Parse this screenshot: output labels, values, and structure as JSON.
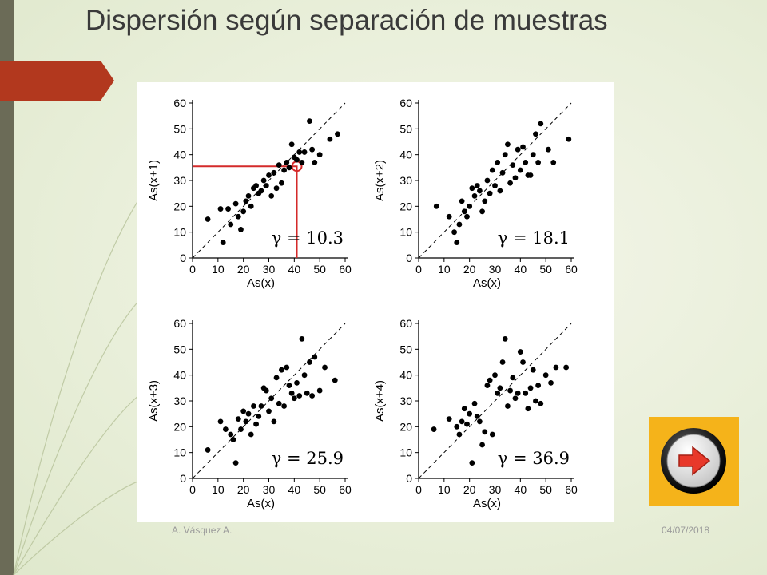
{
  "slide": {
    "title": "Dispersión según separación de muestras",
    "footer_author": "A. Vásquez A.",
    "footer_date": "04/07/2018",
    "colors": {
      "sidebar": "#6b6b57",
      "ribbon": "#b2381e",
      "button_bg": "#f5b31a",
      "arrow": "#e8382a",
      "highlight": "#d42a2a"
    },
    "next_button_icon": "arrow-right-icon"
  },
  "chart_data": [
    {
      "type": "scatter",
      "xlabel": "As(x)",
      "ylabel": "As(x+1)",
      "xlim": [
        0,
        60
      ],
      "ylim": [
        0,
        60
      ],
      "xticks": [
        "0",
        "10",
        "20",
        "30",
        "40",
        "50",
        "60"
      ],
      "yticks": [
        "0",
        "10",
        "20",
        "30",
        "40",
        "50",
        "60"
      ],
      "annotation": "γ = 10.3",
      "reference_line": "y = x (dashed)",
      "highlight": {
        "x": 41,
        "y": 35.5
      },
      "points": [
        [
          6,
          15
        ],
        [
          11,
          19
        ],
        [
          12,
          6
        ],
        [
          14,
          19
        ],
        [
          15,
          13
        ],
        [
          17,
          21
        ],
        [
          18,
          16
        ],
        [
          19,
          11
        ],
        [
          20,
          18
        ],
        [
          21,
          22
        ],
        [
          22,
          24
        ],
        [
          23,
          20
        ],
        [
          24,
          27
        ],
        [
          25,
          28
        ],
        [
          26,
          25
        ],
        [
          27,
          26
        ],
        [
          28,
          30
        ],
        [
          29,
          28
        ],
        [
          30,
          32
        ],
        [
          31,
          24
        ],
        [
          32,
          33
        ],
        [
          33,
          27
        ],
        [
          34,
          36
        ],
        [
          35,
          29
        ],
        [
          36,
          34
        ],
        [
          37,
          37
        ],
        [
          38,
          35
        ],
        [
          39,
          44
        ],
        [
          40,
          39
        ],
        [
          41,
          38
        ],
        [
          42,
          41
        ],
        [
          43,
          37
        ],
        [
          44,
          41
        ],
        [
          46,
          53
        ],
        [
          47,
          42
        ],
        [
          48,
          37
        ],
        [
          50,
          40
        ],
        [
          54,
          46
        ],
        [
          57,
          48
        ]
      ]
    },
    {
      "type": "scatter",
      "xlabel": "As(x)",
      "ylabel": "As(x+2)",
      "xlim": [
        0,
        60
      ],
      "ylim": [
        0,
        60
      ],
      "xticks": [
        "0",
        "10",
        "20",
        "30",
        "40",
        "50",
        "60"
      ],
      "yticks": [
        "0",
        "10",
        "20",
        "30",
        "40",
        "50",
        "60"
      ],
      "annotation": "γ = 18.1",
      "reference_line": "y = x (dashed)",
      "points": [
        [
          7,
          20
        ],
        [
          12,
          16
        ],
        [
          14,
          10
        ],
        [
          15,
          6
        ],
        [
          16,
          13
        ],
        [
          17,
          22
        ],
        [
          18,
          18
        ],
        [
          19,
          16
        ],
        [
          20,
          20
        ],
        [
          21,
          27
        ],
        [
          22,
          24
        ],
        [
          23,
          28
        ],
        [
          24,
          26
        ],
        [
          25,
          18
        ],
        [
          26,
          22
        ],
        [
          27,
          30
        ],
        [
          28,
          25
        ],
        [
          29,
          34
        ],
        [
          30,
          28
        ],
        [
          31,
          37
        ],
        [
          32,
          26
        ],
        [
          33,
          33
        ],
        [
          34,
          40
        ],
        [
          35,
          44
        ],
        [
          36,
          29
        ],
        [
          37,
          36
        ],
        [
          38,
          31
        ],
        [
          39,
          42
        ],
        [
          40,
          34
        ],
        [
          41,
          43
        ],
        [
          42,
          37
        ],
        [
          43,
          32
        ],
        [
          44,
          32
        ],
        [
          45,
          40
        ],
        [
          46,
          48
        ],
        [
          47,
          37
        ],
        [
          48,
          52
        ],
        [
          51,
          42
        ],
        [
          53,
          37
        ],
        [
          59,
          46
        ]
      ]
    },
    {
      "type": "scatter",
      "xlabel": "As(x)",
      "ylabel": "As(x+3)",
      "xlim": [
        0,
        60
      ],
      "ylim": [
        0,
        60
      ],
      "xticks": [
        "0",
        "10",
        "20",
        "30",
        "40",
        "50",
        "60"
      ],
      "yticks": [
        "0",
        "10",
        "20",
        "30",
        "40",
        "50",
        "60"
      ],
      "annotation": "γ = 25.9",
      "reference_line": "y = x (dashed)",
      "points": [
        [
          6,
          11
        ],
        [
          11,
          22
        ],
        [
          13,
          19
        ],
        [
          15,
          17
        ],
        [
          16,
          15
        ],
        [
          17,
          6
        ],
        [
          18,
          23
        ],
        [
          19,
          19
        ],
        [
          20,
          26
        ],
        [
          21,
          22
        ],
        [
          22,
          25
        ],
        [
          23,
          17
        ],
        [
          24,
          28
        ],
        [
          25,
          21
        ],
        [
          26,
          24
        ],
        [
          27,
          28
        ],
        [
          28,
          35
        ],
        [
          29,
          34
        ],
        [
          30,
          26
        ],
        [
          31,
          31
        ],
        [
          32,
          22
        ],
        [
          33,
          39
        ],
        [
          34,
          29
        ],
        [
          35,
          42
        ],
        [
          36,
          28
        ],
        [
          37,
          43
        ],
        [
          38,
          36
        ],
        [
          39,
          33
        ],
        [
          40,
          31
        ],
        [
          41,
          37
        ],
        [
          42,
          32
        ],
        [
          43,
          54
        ],
        [
          44,
          40
        ],
        [
          45,
          33
        ],
        [
          46,
          45
        ],
        [
          47,
          32
        ],
        [
          48,
          47
        ],
        [
          50,
          34
        ],
        [
          52,
          43
        ],
        [
          56,
          38
        ]
      ]
    },
    {
      "type": "scatter",
      "xlabel": "As(x)",
      "ylabel": "As(x+4)",
      "xlim": [
        0,
        60
      ],
      "ylim": [
        0,
        60
      ],
      "xticks": [
        "0",
        "10",
        "20",
        "30",
        "40",
        "50",
        "60"
      ],
      "yticks": [
        "0",
        "10",
        "20",
        "30",
        "40",
        "50",
        "60"
      ],
      "annotation": "γ = 36.9",
      "reference_line": "y = x (dashed)",
      "points": [
        [
          6,
          19
        ],
        [
          12,
          23
        ],
        [
          15,
          20
        ],
        [
          16,
          17
        ],
        [
          17,
          22
        ],
        [
          18,
          27
        ],
        [
          19,
          21
        ],
        [
          20,
          25
        ],
        [
          21,
          6
        ],
        [
          22,
          29
        ],
        [
          23,
          24
        ],
        [
          24,
          22
        ],
        [
          25,
          13
        ],
        [
          26,
          18
        ],
        [
          27,
          36
        ],
        [
          28,
          38
        ],
        [
          29,
          17
        ],
        [
          30,
          40
        ],
        [
          31,
          33
        ],
        [
          32,
          35
        ],
        [
          33,
          45
        ],
        [
          34,
          54
        ],
        [
          35,
          28
        ],
        [
          36,
          34
        ],
        [
          37,
          39
        ],
        [
          38,
          31
        ],
        [
          39,
          33
        ],
        [
          40,
          49
        ],
        [
          41,
          45
        ],
        [
          42,
          33
        ],
        [
          43,
          27
        ],
        [
          44,
          35
        ],
        [
          45,
          42
        ],
        [
          46,
          30
        ],
        [
          47,
          36
        ],
        [
          48,
          29
        ],
        [
          50,
          40
        ],
        [
          52,
          37
        ],
        [
          54,
          43
        ],
        [
          58,
          43
        ]
      ]
    }
  ]
}
